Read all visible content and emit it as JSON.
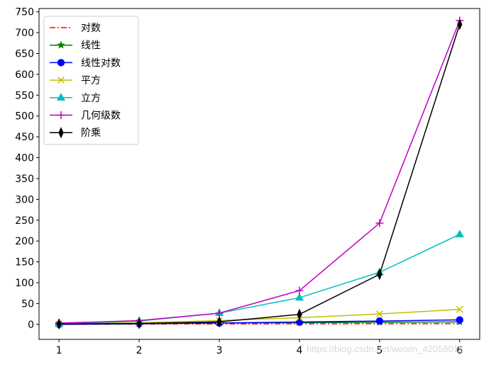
{
  "chart_data": {
    "type": "line",
    "title": "",
    "xlabel": "",
    "ylabel": "",
    "x": [
      1,
      2,
      3,
      4,
      5,
      6
    ],
    "xlim": [
      0.75,
      6.25
    ],
    "ylim": [
      -36,
      758
    ],
    "xticks": [
      1,
      2,
      3,
      4,
      5,
      6
    ],
    "yticks": [
      0,
      50,
      100,
      150,
      200,
      250,
      300,
      350,
      400,
      450,
      500,
      550,
      600,
      650,
      700,
      750
    ],
    "grid": false,
    "legend_position": "upper-left",
    "series": [
      {
        "name": "对数",
        "values": [
          0.0,
          0.69,
          1.1,
          1.39,
          1.61,
          1.79
        ],
        "color": "#ff0000",
        "line": "dashdot",
        "marker": "none"
      },
      {
        "name": "线性",
        "values": [
          1,
          2,
          3,
          4,
          5,
          6
        ],
        "color": "#008000",
        "line": "solid",
        "marker": "star"
      },
      {
        "name": "线性对数",
        "values": [
          0.0,
          1.39,
          3.3,
          5.55,
          8.05,
          10.75
        ],
        "color": "#0000ff",
        "line": "solid",
        "marker": "circle"
      },
      {
        "name": "平方",
        "values": [
          1,
          4,
          9,
          16,
          25,
          36
        ],
        "color": "#bfbf00",
        "line": "solid",
        "marker": "x"
      },
      {
        "name": "立方",
        "values": [
          1,
          8,
          27,
          64,
          125,
          216
        ],
        "color": "#00bfbf",
        "line": "solid",
        "marker": "triangle"
      },
      {
        "name": "几何级数",
        "values": [
          3,
          9,
          27,
          81,
          243,
          729
        ],
        "color": "#bf00bf",
        "line": "solid",
        "marker": "plus"
      },
      {
        "name": "阶乘",
        "values": [
          1,
          2,
          6,
          24,
          120,
          720
        ],
        "color": "#000000",
        "line": "solid",
        "marker": "thin-diamond"
      }
    ]
  },
  "watermark": "https://blog.csdn.net/weixin_42058012"
}
